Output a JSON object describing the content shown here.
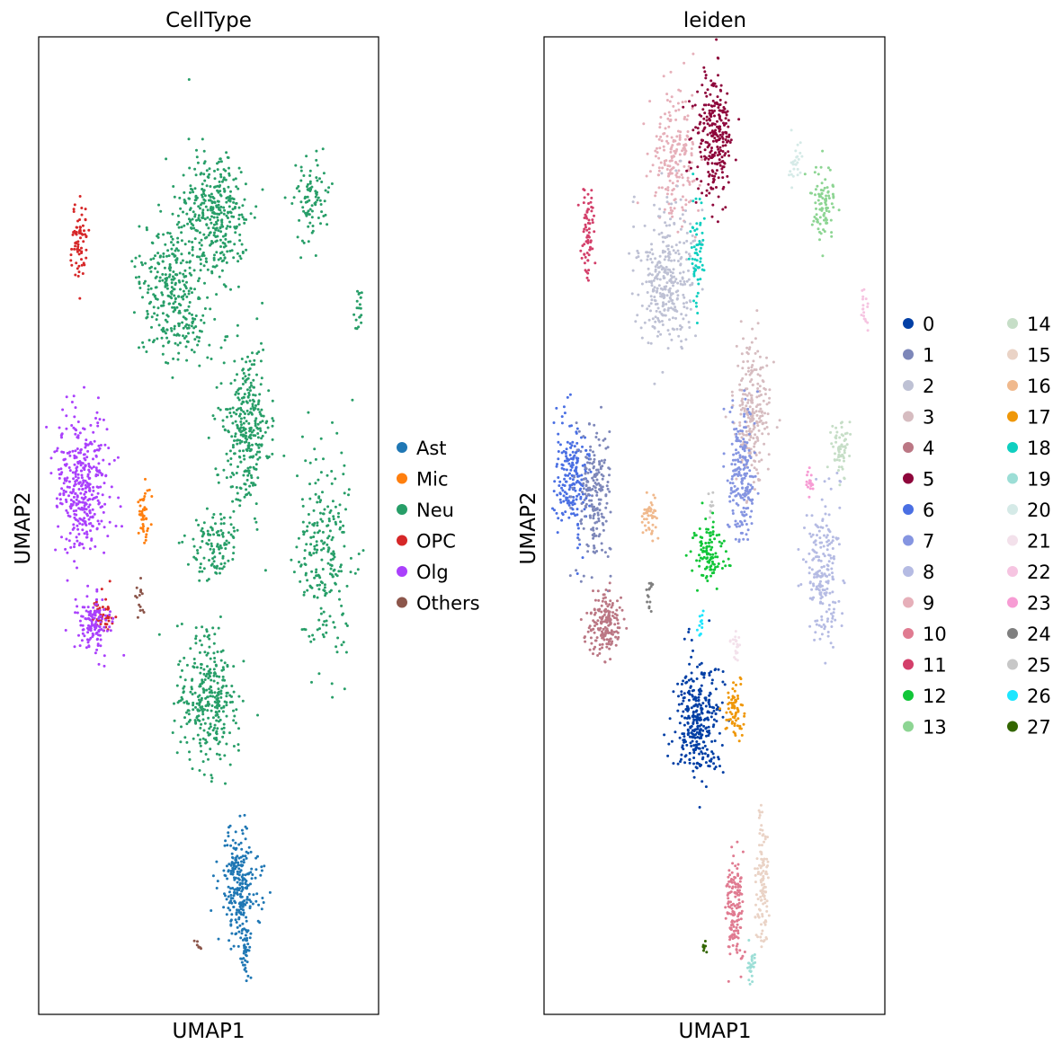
{
  "chart_data": [
    {
      "type": "scatter",
      "title": "CellType",
      "xlabel": "UMAP1",
      "ylabel": "UMAP2",
      "legend_position": "right",
      "legend": [
        {
          "label": "Ast",
          "color": "#1f77b4"
        },
        {
          "label": "Mic",
          "color": "#ff7f0e"
        },
        {
          "label": "Neu",
          "color": "#279e68"
        },
        {
          "label": "OPC",
          "color": "#d62728"
        },
        {
          "label": "Olg",
          "color": "#aa40fc"
        },
        {
          "label": "Others",
          "color": "#8c564b"
        }
      ],
      "clusters": [
        {
          "group": "Neu",
          "cx": 0.52,
          "cy": 0.18,
          "rx": 0.1,
          "ry": 0.065,
          "n": 340
        },
        {
          "group": "Neu",
          "cx": 0.4,
          "cy": 0.26,
          "rx": 0.1,
          "ry": 0.07,
          "n": 340
        },
        {
          "group": "Neu",
          "cx": 0.61,
          "cy": 0.4,
          "rx": 0.07,
          "ry": 0.085,
          "n": 320
        },
        {
          "group": "Neu",
          "cx": 0.52,
          "cy": 0.52,
          "rx": 0.08,
          "ry": 0.035,
          "n": 110
        },
        {
          "group": "Neu",
          "cx": 0.5,
          "cy": 0.68,
          "rx": 0.09,
          "ry": 0.065,
          "n": 320
        },
        {
          "group": "Neu",
          "cx": 0.84,
          "cy": 0.53,
          "rx": 0.08,
          "ry": 0.11,
          "n": 240
        },
        {
          "group": "Neu",
          "cx": 0.8,
          "cy": 0.17,
          "rx": 0.05,
          "ry": 0.045,
          "n": 90
        },
        {
          "group": "Neu",
          "cx": 0.94,
          "cy": 0.28,
          "rx": 0.012,
          "ry": 0.025,
          "n": 20
        },
        {
          "group": "OPC",
          "cx": 0.12,
          "cy": 0.21,
          "rx": 0.025,
          "ry": 0.04,
          "n": 70
        },
        {
          "group": "OPC",
          "cx": 0.19,
          "cy": 0.59,
          "rx": 0.03,
          "ry": 0.025,
          "n": 45
        },
        {
          "group": "Olg",
          "cx": 0.13,
          "cy": 0.46,
          "rx": 0.08,
          "ry": 0.07,
          "n": 380
        },
        {
          "group": "Olg",
          "cx": 0.16,
          "cy": 0.6,
          "rx": 0.05,
          "ry": 0.03,
          "n": 130
        },
        {
          "group": "Mic",
          "cx": 0.31,
          "cy": 0.49,
          "rx": 0.018,
          "ry": 0.03,
          "n": 45
        },
        {
          "group": "Others",
          "cx": 0.3,
          "cy": 0.57,
          "rx": 0.01,
          "ry": 0.02,
          "n": 15
        },
        {
          "group": "Others",
          "cx": 0.47,
          "cy": 0.93,
          "rx": 0.008,
          "ry": 0.006,
          "n": 8
        },
        {
          "group": "Ast",
          "cx": 0.59,
          "cy": 0.87,
          "rx": 0.06,
          "ry": 0.06,
          "n": 260
        },
        {
          "group": "Ast",
          "cx": 0.61,
          "cy": 0.94,
          "rx": 0.015,
          "ry": 0.02,
          "n": 30
        }
      ]
    },
    {
      "type": "scatter",
      "title": "leiden",
      "xlabel": "UMAP1",
      "ylabel": "UMAP2",
      "legend_position": "right",
      "legend": [
        {
          "label": "0",
          "color": "#023fa5"
        },
        {
          "label": "1",
          "color": "#7d87b9"
        },
        {
          "label": "2",
          "color": "#bec1d4"
        },
        {
          "label": "3",
          "color": "#d6bcc0"
        },
        {
          "label": "4",
          "color": "#bb7784"
        },
        {
          "label": "5",
          "color": "#8e063b"
        },
        {
          "label": "6",
          "color": "#4a6fe3"
        },
        {
          "label": "7",
          "color": "#8595e1"
        },
        {
          "label": "8",
          "color": "#b5bbe3"
        },
        {
          "label": "9",
          "color": "#e6afb9"
        },
        {
          "label": "10",
          "color": "#e07b91"
        },
        {
          "label": "11",
          "color": "#d33f6a"
        },
        {
          "label": "12",
          "color": "#11c638"
        },
        {
          "label": "13",
          "color": "#8dd593"
        },
        {
          "label": "14",
          "color": "#c6dec7"
        },
        {
          "label": "15",
          "color": "#ead3c6"
        },
        {
          "label": "16",
          "color": "#f0b98d"
        },
        {
          "label": "17",
          "color": "#ef9708"
        },
        {
          "label": "18",
          "color": "#0fcfc0"
        },
        {
          "label": "19",
          "color": "#9cded6"
        },
        {
          "label": "20",
          "color": "#d5eae7"
        },
        {
          "label": "21",
          "color": "#f3e1eb"
        },
        {
          "label": "22",
          "color": "#f6c4e1"
        },
        {
          "label": "23",
          "color": "#f79cd4"
        },
        {
          "label": "24",
          "color": "#7f7f7f"
        },
        {
          "label": "25",
          "color": "#c7c7c7"
        },
        {
          "label": "26",
          "color": "#1ce6ff"
        },
        {
          "label": "27",
          "color": "#336600"
        }
      ],
      "clusters": [
        {
          "group": "9",
          "cx": 0.38,
          "cy": 0.12,
          "rx": 0.07,
          "ry": 0.06,
          "n": 200
        },
        {
          "group": "5",
          "cx": 0.5,
          "cy": 0.1,
          "rx": 0.055,
          "ry": 0.06,
          "n": 260
        },
        {
          "group": "2",
          "cx": 0.36,
          "cy": 0.25,
          "rx": 0.08,
          "ry": 0.07,
          "n": 320
        },
        {
          "group": "18",
          "cx": 0.45,
          "cy": 0.22,
          "rx": 0.02,
          "ry": 0.06,
          "n": 60
        },
        {
          "group": "20",
          "cx": 0.74,
          "cy": 0.13,
          "rx": 0.02,
          "ry": 0.025,
          "n": 25
        },
        {
          "group": "13",
          "cx": 0.82,
          "cy": 0.17,
          "rx": 0.03,
          "ry": 0.04,
          "n": 90
        },
        {
          "group": "22",
          "cx": 0.94,
          "cy": 0.28,
          "rx": 0.01,
          "ry": 0.025,
          "n": 18
        },
        {
          "group": "11",
          "cx": 0.13,
          "cy": 0.2,
          "rx": 0.022,
          "ry": 0.045,
          "n": 70
        },
        {
          "group": "3",
          "cx": 0.61,
          "cy": 0.38,
          "rx": 0.05,
          "ry": 0.07,
          "n": 230
        },
        {
          "group": "7",
          "cx": 0.58,
          "cy": 0.45,
          "rx": 0.04,
          "ry": 0.07,
          "n": 200
        },
        {
          "group": "14",
          "cx": 0.87,
          "cy": 0.42,
          "rx": 0.03,
          "ry": 0.025,
          "n": 60
        },
        {
          "group": "23",
          "cx": 0.78,
          "cy": 0.46,
          "rx": 0.012,
          "ry": 0.015,
          "n": 20
        },
        {
          "group": "8",
          "cx": 0.82,
          "cy": 0.55,
          "rx": 0.05,
          "ry": 0.07,
          "n": 200
        },
        {
          "group": "6",
          "cx": 0.08,
          "cy": 0.45,
          "rx": 0.05,
          "ry": 0.06,
          "n": 200
        },
        {
          "group": "1",
          "cx": 0.15,
          "cy": 0.47,
          "rx": 0.045,
          "ry": 0.075,
          "n": 200
        },
        {
          "group": "4",
          "cx": 0.18,
          "cy": 0.6,
          "rx": 0.05,
          "ry": 0.035,
          "n": 180
        },
        {
          "group": "16",
          "cx": 0.31,
          "cy": 0.49,
          "rx": 0.018,
          "ry": 0.025,
          "n": 45
        },
        {
          "group": "24",
          "cx": 0.31,
          "cy": 0.57,
          "rx": 0.01,
          "ry": 0.02,
          "n": 15
        },
        {
          "group": "25",
          "cx": 0.49,
          "cy": 0.48,
          "rx": 0.008,
          "ry": 0.015,
          "n": 10
        },
        {
          "group": "12",
          "cx": 0.48,
          "cy": 0.53,
          "rx": 0.045,
          "ry": 0.03,
          "n": 110
        },
        {
          "group": "26",
          "cx": 0.46,
          "cy": 0.6,
          "rx": 0.01,
          "ry": 0.012,
          "n": 12
        },
        {
          "group": "21",
          "cx": 0.56,
          "cy": 0.63,
          "rx": 0.015,
          "ry": 0.02,
          "n": 20
        },
        {
          "group": "0",
          "cx": 0.45,
          "cy": 0.7,
          "rx": 0.07,
          "ry": 0.06,
          "n": 330
        },
        {
          "group": "17",
          "cx": 0.56,
          "cy": 0.69,
          "rx": 0.03,
          "ry": 0.03,
          "n": 70
        },
        {
          "group": "15",
          "cx": 0.64,
          "cy": 0.86,
          "rx": 0.02,
          "ry": 0.07,
          "n": 110
        },
        {
          "group": "10",
          "cx": 0.56,
          "cy": 0.89,
          "rx": 0.025,
          "ry": 0.06,
          "n": 150
        },
        {
          "group": "19",
          "cx": 0.61,
          "cy": 0.95,
          "rx": 0.012,
          "ry": 0.02,
          "n": 25
        },
        {
          "group": "27",
          "cx": 0.47,
          "cy": 0.93,
          "rx": 0.006,
          "ry": 0.006,
          "n": 8
        }
      ]
    }
  ]
}
